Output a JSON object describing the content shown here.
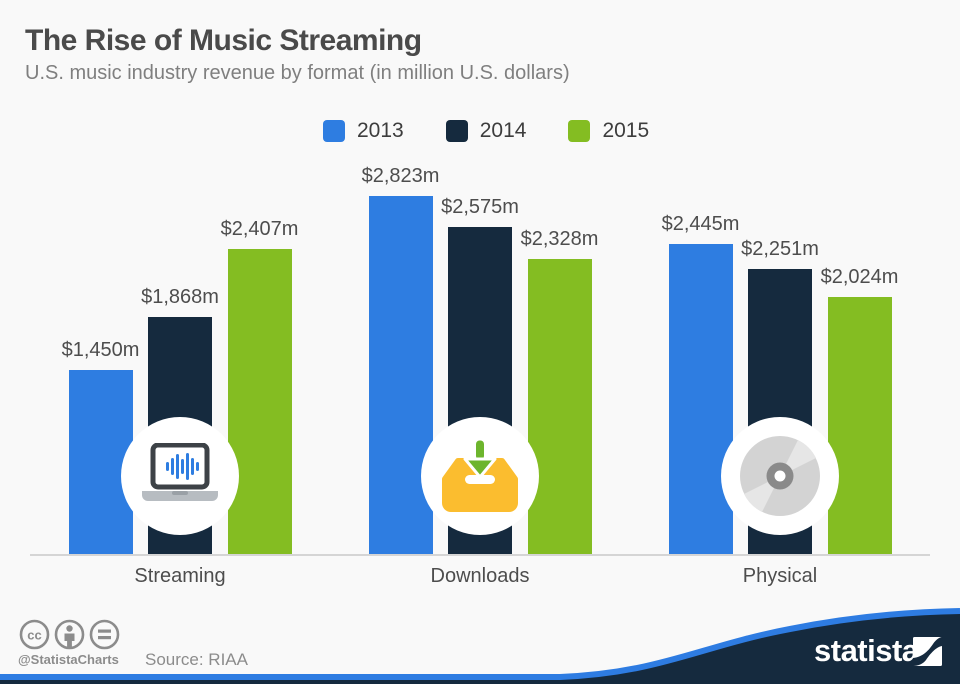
{
  "title": "The Rise of Music Streaming",
  "subtitle": "U.S. music industry revenue by format (in million U.S. dollars)",
  "legend": [
    {
      "label": "2013",
      "color": "#2e7de1"
    },
    {
      "label": "2014",
      "color": "#152a3e"
    },
    {
      "label": "2015",
      "color": "#84bd22"
    }
  ],
  "chart_data": {
    "type": "bar",
    "categories": [
      "Streaming",
      "Downloads",
      "Physical"
    ],
    "series": [
      {
        "name": "2013",
        "color": "#2e7de1",
        "values": [
          1450,
          2823,
          2445
        ],
        "labels": [
          "$1,450m",
          "$2,823m",
          "$2,445m"
        ]
      },
      {
        "name": "2014",
        "color": "#152a3e",
        "values": [
          1868,
          2575,
          2251
        ],
        "labels": [
          "$1,868m",
          "$2,575m",
          "$2,251m"
        ]
      },
      {
        "name": "2015",
        "color": "#84bd22",
        "values": [
          2407,
          2328,
          2024
        ],
        "labels": [
          "$2,407m",
          "$2,328m",
          "$2,024m"
        ]
      }
    ],
    "ylim": [
      0,
      2823
    ],
    "unit": "million U.S. dollars",
    "grid": false,
    "legend_position": "top",
    "category_icons": [
      "laptop-audio-wave-icon",
      "download-inbox-icon",
      "cd-disc-icon"
    ]
  },
  "footer": {
    "license_icons": [
      "cc-icon",
      "attribution-person-icon",
      "equal-icon"
    ],
    "handle": "@StatistaCharts",
    "source": "Source: RIAA",
    "brand": "statista"
  },
  "colors": {
    "background": "#f9f9f9",
    "title": "#4a4a4a",
    "subtitle": "#7f7f7f",
    "axis_line": "#d5d5d5",
    "value_label": "#4d4d4d",
    "footer_navy": "#152a3e",
    "footer_blue": "#2e7ce2",
    "inbox_yellow": "#fbbd2f",
    "inbox_arrow_green": "#6db52d",
    "waveform_blue": "#2e7de1"
  }
}
